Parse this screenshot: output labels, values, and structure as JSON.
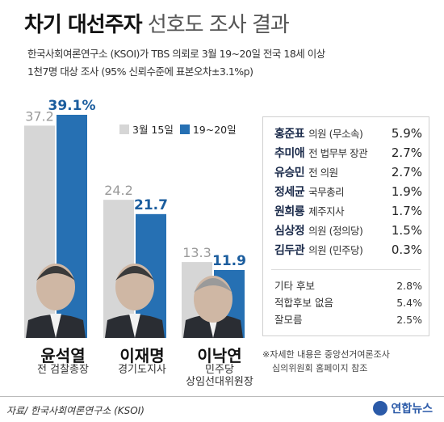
{
  "title": {
    "bold": "차기 대선주자",
    "light": "선호도 조사 결과"
  },
  "subtitle": [
    "한국사회여론연구소 (KSOI)가 TBS 의뢰로 3월 19~20일 전국 18세 이상",
    "1천7명 대상 조사 (95% 신뢰수준에 표본오차±3.1%p)"
  ],
  "colors": {
    "previous": "#d6d6d6",
    "current": "#2670b3",
    "prev_label": "#9a9a9a",
    "current_label": "#1b5d9e"
  },
  "chart_data": {
    "type": "bar",
    "categories": [
      "윤석열",
      "이재명",
      "이낙연"
    ],
    "series": [
      {
        "name": "3월 15일",
        "values": [
          37.2,
          24.2,
          13.3
        ],
        "labels": [
          "37.2",
          "24.2",
          "13.3"
        ]
      },
      {
        "name": "19~20일",
        "values": [
          39.1,
          21.7,
          11.9
        ],
        "labels": [
          "39.1%",
          "21.7",
          "11.9"
        ]
      }
    ],
    "ylim": [
      0,
      45
    ]
  },
  "candidates": [
    {
      "name": "윤석열",
      "role": [
        "전 검찰총장"
      ]
    },
    {
      "name": "이재명",
      "role": [
        "경기도지사"
      ]
    },
    {
      "name": "이낙연",
      "role": [
        "민주당",
        "상임선대위원장"
      ]
    }
  ],
  "others": [
    {
      "name": "홍준표",
      "role": "의원 (무소속)",
      "value": "5.9%"
    },
    {
      "name": "추미애",
      "role": "전 법무부 장관",
      "value": "2.7%"
    },
    {
      "name": "유승민",
      "role": "전 의원",
      "value": "2.7%"
    },
    {
      "name": "정세균",
      "role": "국무총리",
      "value": "1.9%"
    },
    {
      "name": "원희룡",
      "role": "제주지사",
      "value": "1.7%"
    },
    {
      "name": "심상정",
      "role": "의원 (정의당)",
      "value": "1.5%"
    },
    {
      "name": "김두관",
      "role": "의원 (민주당)",
      "value": "0.3%"
    }
  ],
  "other_responses": [
    {
      "label": "기타 후보",
      "value": "2.8%"
    },
    {
      "label": "적합후보 없음",
      "value": "5.4%"
    },
    {
      "label": "잘모름",
      "value": "2.5%"
    }
  ],
  "note": [
    "※자세한 내용은 중앙선거여론조사",
    "심의위원회 홈페이지 참조"
  ],
  "source": "자료/ 한국사회여론연구소 (KSOI)",
  "logo": "연합뉴스"
}
